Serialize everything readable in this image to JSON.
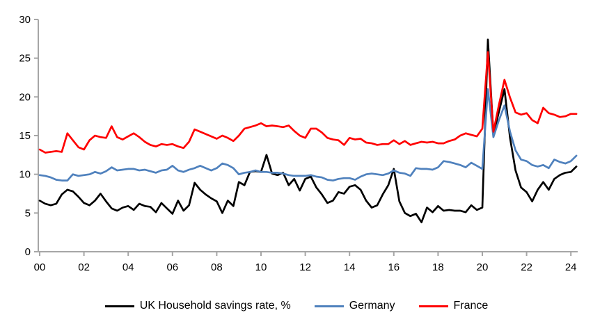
{
  "chart_data": {
    "type": "line",
    "title": "",
    "xlabel": "",
    "ylabel": "",
    "ylim": [
      0,
      30
    ],
    "y_ticks": [
      0,
      5,
      10,
      15,
      20,
      25,
      30
    ],
    "x_tick_labels": [
      "00",
      "02",
      "04",
      "06",
      "08",
      "10",
      "12",
      "14",
      "16",
      "18",
      "20",
      "22",
      "24"
    ],
    "x_start": "2000Q1",
    "x_end": "2024Q2",
    "points_per_year": 4,
    "grid": false,
    "legend_position": "bottom",
    "axis_color": "#a6a6a6",
    "text_color": "#000000",
    "series": [
      {
        "name": "UK Household savings rate, %",
        "color": "#000000",
        "values": [
          6.6,
          6.2,
          6.0,
          6.2,
          7.4,
          8.0,
          7.8,
          7.1,
          6.3,
          6.0,
          6.6,
          7.5,
          6.5,
          5.6,
          5.3,
          5.7,
          5.9,
          5.4,
          6.2,
          5.9,
          5.8,
          5.1,
          6.3,
          5.6,
          4.9,
          6.6,
          5.3,
          6.0,
          8.9,
          8.0,
          7.4,
          6.9,
          6.5,
          5.0,
          6.6,
          5.9,
          9.0,
          8.6,
          10.3,
          10.4,
          10.3,
          12.5,
          10.1,
          9.9,
          10.2,
          8.6,
          9.4,
          7.9,
          9.4,
          9.7,
          8.3,
          7.4,
          6.3,
          6.6,
          7.7,
          7.5,
          8.4,
          8.6,
          8.0,
          6.6,
          5.7,
          6.0,
          7.4,
          8.6,
          10.7,
          6.5,
          5.0,
          4.6,
          4.9,
          3.8,
          5.7,
          5.1,
          5.9,
          5.3,
          5.4,
          5.3,
          5.3,
          5.1,
          6.0,
          5.4,
          5.7,
          27.4,
          15.2,
          18.1,
          21.0,
          14.7,
          10.5,
          8.3,
          7.7,
          6.5,
          8.0,
          9.0,
          8.0,
          9.4,
          9.9,
          10.2,
          10.3,
          11.0
        ]
      },
      {
        "name": "Germany",
        "color": "#4f81bd",
        "values": [
          9.9,
          9.8,
          9.6,
          9.3,
          9.2,
          9.2,
          10.0,
          9.8,
          9.9,
          10.0,
          10.3,
          10.1,
          10.4,
          10.9,
          10.5,
          10.6,
          10.7,
          10.7,
          10.5,
          10.6,
          10.4,
          10.2,
          10.5,
          10.6,
          11.1,
          10.5,
          10.3,
          10.6,
          10.8,
          11.1,
          10.8,
          10.5,
          10.8,
          11.4,
          11.2,
          10.8,
          10.0,
          10.2,
          10.3,
          10.5,
          10.3,
          10.3,
          10.2,
          10.2,
          10.1,
          9.9,
          9.8,
          9.8,
          9.8,
          9.9,
          9.7,
          9.6,
          9.3,
          9.2,
          9.4,
          9.5,
          9.5,
          9.3,
          9.7,
          10.0,
          10.1,
          10.0,
          9.9,
          10.1,
          10.5,
          10.2,
          10.1,
          9.8,
          10.8,
          10.7,
          10.7,
          10.6,
          10.9,
          11.7,
          11.6,
          11.4,
          11.2,
          10.9,
          11.5,
          11.1,
          10.7,
          21.0,
          14.8,
          17.0,
          18.9,
          15.5,
          13.1,
          11.9,
          11.7,
          11.2,
          11.0,
          11.2,
          10.8,
          11.9,
          11.6,
          11.4,
          11.7,
          12.4
        ]
      },
      {
        "name": "France",
        "color": "#ff0000",
        "values": [
          13.2,
          12.8,
          12.9,
          13.0,
          12.9,
          15.3,
          14.4,
          13.5,
          13.2,
          14.4,
          15.0,
          14.8,
          14.7,
          16.2,
          14.8,
          14.5,
          14.9,
          15.3,
          14.8,
          14.2,
          13.8,
          13.6,
          13.9,
          13.8,
          13.9,
          13.6,
          13.4,
          14.2,
          15.8,
          15.5,
          15.2,
          14.9,
          14.6,
          15.0,
          14.7,
          14.3,
          15.0,
          15.9,
          16.1,
          16.3,
          16.6,
          16.2,
          16.3,
          16.2,
          16.1,
          16.3,
          15.6,
          15.0,
          14.7,
          15.9,
          15.9,
          15.4,
          14.7,
          14.5,
          14.4,
          13.8,
          14.7,
          14.5,
          14.6,
          14.1,
          14.0,
          13.8,
          13.9,
          13.9,
          14.4,
          13.9,
          14.3,
          13.8,
          14.0,
          14.2,
          14.1,
          14.2,
          14.0,
          14.0,
          14.3,
          14.5,
          15.0,
          15.3,
          15.1,
          14.9,
          15.9,
          25.8,
          15.5,
          19.0,
          22.2,
          19.9,
          18.0,
          17.7,
          17.9,
          17.0,
          16.6,
          18.6,
          17.9,
          17.7,
          17.4,
          17.5,
          17.8,
          17.8
        ]
      }
    ]
  }
}
